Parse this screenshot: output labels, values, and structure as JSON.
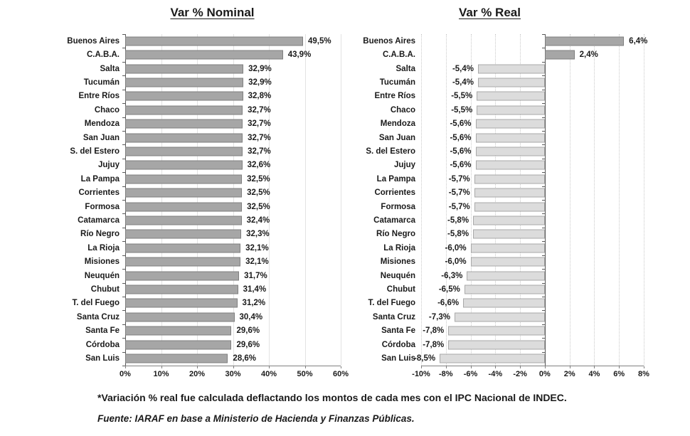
{
  "chart_data": [
    {
      "type": "bar",
      "orientation": "horizontal",
      "title": "Var % Nominal",
      "categories": [
        "Buenos Aires",
        "C.A.B.A.",
        "Salta",
        "Tucumán",
        "Entre Ríos",
        "Chaco",
        "Mendoza",
        "San Juan",
        "S. del Estero",
        "Jujuy",
        "La Pampa",
        "Corrientes",
        "Formosa",
        "Catamarca",
        "Río Negro",
        "La Rioja",
        "Misiones",
        "Neuquén",
        "Chubut",
        "T. del Fuego",
        "Santa Cruz",
        "Santa Fe",
        "Córdoba",
        "San Luis"
      ],
      "values": [
        49.5,
        43.9,
        32.9,
        32.9,
        32.8,
        32.7,
        32.7,
        32.7,
        32.7,
        32.6,
        32.5,
        32.5,
        32.5,
        32.4,
        32.3,
        32.1,
        32.1,
        31.7,
        31.4,
        31.2,
        30.4,
        29.6,
        29.6,
        28.6
      ],
      "value_labels": [
        "49,5%",
        "43,9%",
        "32,9%",
        "32,9%",
        "32,8%",
        "32,7%",
        "32,7%",
        "32,7%",
        "32,7%",
        "32,6%",
        "32,5%",
        "32,5%",
        "32,5%",
        "32,4%",
        "32,3%",
        "32,1%",
        "32,1%",
        "31,7%",
        "31,4%",
        "31,2%",
        "30,4%",
        "29,6%",
        "29,6%",
        "28,6%"
      ],
      "xlim": [
        0,
        60
      ],
      "x_ticks": [
        {
          "value": 0,
          "label": "0%"
        },
        {
          "value": 10,
          "label": "10%"
        },
        {
          "value": 20,
          "label": "20%"
        },
        {
          "value": 30,
          "label": "30%"
        },
        {
          "value": 40,
          "label": "40%"
        },
        {
          "value": 50,
          "label": "50%"
        },
        {
          "value": 60,
          "label": "60%"
        }
      ],
      "grid": true,
      "legend": "none"
    },
    {
      "type": "bar",
      "orientation": "horizontal",
      "title": "Var % Real",
      "categories": [
        "Buenos Aires",
        "C.A.B.A.",
        "Salta",
        "Tucumán",
        "Entre Ríos",
        "Chaco",
        "Mendoza",
        "San Juan",
        "S. del Estero",
        "Jujuy",
        "La Pampa",
        "Corrientes",
        "Formosa",
        "Catamarca",
        "Río Negro",
        "La Rioja",
        "Misiones",
        "Neuquén",
        "Chubut",
        "T. del Fuego",
        "Santa Cruz",
        "Santa Fe",
        "Córdoba",
        "San Luis"
      ],
      "values": [
        6.4,
        2.4,
        -5.4,
        -5.4,
        -5.5,
        -5.5,
        -5.6,
        -5.6,
        -5.6,
        -5.6,
        -5.7,
        -5.7,
        -5.7,
        -5.8,
        -5.8,
        -6.0,
        -6.0,
        -6.3,
        -6.5,
        -6.6,
        -7.3,
        -7.8,
        -7.8,
        -8.5
      ],
      "value_labels": [
        "6,4%",
        "2,4%",
        "-5,4%",
        "-5,4%",
        "-5,5%",
        "-5,5%",
        "-5,6%",
        "-5,6%",
        "-5,6%",
        "-5,6%",
        "-5,7%",
        "-5,7%",
        "-5,7%",
        "-5,8%",
        "-5,8%",
        "-6,0%",
        "-6,0%",
        "-6,3%",
        "-6,5%",
        "-6,6%",
        "-7,3%",
        "-7,8%",
        "-7,8%",
        "-8,5%"
      ],
      "xlim": [
        -10,
        8
      ],
      "x_ticks": [
        {
          "value": -10,
          "label": "-10%"
        },
        {
          "value": -8,
          "label": "-8%"
        },
        {
          "value": -6,
          "label": "-6%"
        },
        {
          "value": -4,
          "label": "-4%"
        },
        {
          "value": -2,
          "label": "-2%"
        },
        {
          "value": 0,
          "label": "0%"
        },
        {
          "value": 2,
          "label": "2%"
        },
        {
          "value": 4,
          "label": "4%"
        },
        {
          "value": 6,
          "label": "6%"
        },
        {
          "value": 8,
          "label": "8%"
        }
      ],
      "grid": true,
      "legend": "none"
    }
  ],
  "footnotes": {
    "note": "*Variación % real fue calculada deflactando los montos de cada mes con el IPC Nacional de INDEC.",
    "source": "Fuente: IARAF en base a Ministerio de Hacienda y Finanzas Públicas."
  },
  "colors": {
    "bar_fill": "#a6a6a6",
    "bar_border": "#7f7f7f",
    "negative_fill": "#dcdcdc",
    "negative_border": "#a9a9a9",
    "gridline": "#d9d9d9",
    "axis": "#595959",
    "text": "#1a1a1a",
    "background": "#ffffff"
  }
}
